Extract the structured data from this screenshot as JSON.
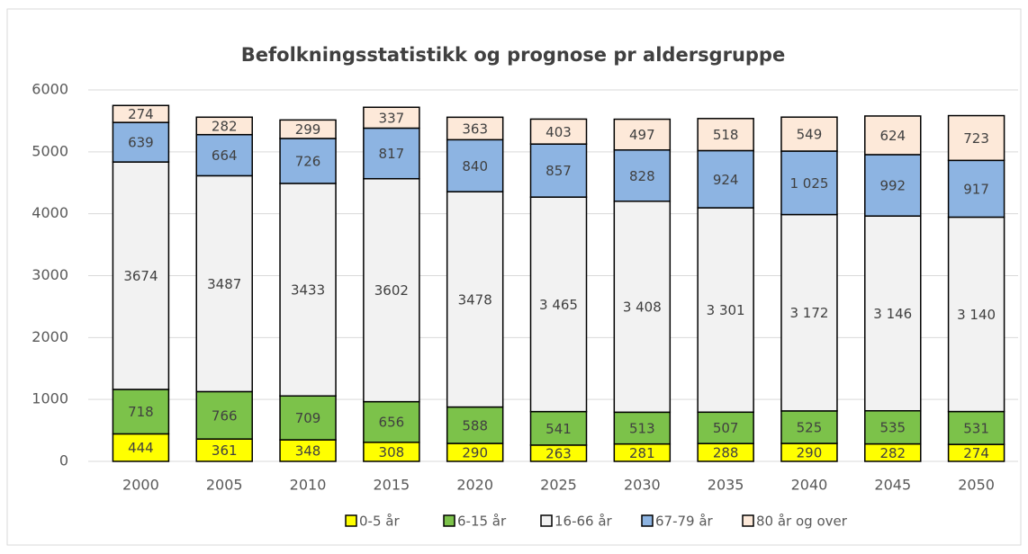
{
  "chart_data": {
    "type": "stacked_bar",
    "title": "Befolkningsstatistikk og prognose pr aldersgruppe",
    "categories": [
      "2000",
      "2005",
      "2010",
      "2015",
      "2020",
      "2025",
      "2030",
      "2035",
      "2040",
      "2045",
      "2050"
    ],
    "series": [
      {
        "name": "0-5 år",
        "color": "#ffff00",
        "values": [
          444,
          361,
          348,
          308,
          290,
          263,
          281,
          288,
          290,
          282,
          274
        ]
      },
      {
        "name": "6-15 år",
        "color": "#7cc24a",
        "values": [
          718,
          766,
          709,
          656,
          588,
          541,
          513,
          507,
          525,
          535,
          531
        ]
      },
      {
        "name": "16-66 år",
        "color": "#f2f2f2",
        "values": [
          3674,
          3487,
          3433,
          3602,
          3478,
          3465,
          3408,
          3301,
          3172,
          3146,
          3140
        ],
        "value_labels": [
          "3674",
          "3487",
          "3433",
          "3602",
          "3478",
          "3 465",
          "3 408",
          "3 301",
          "3 172",
          "3 146",
          "3 140"
        ]
      },
      {
        "name": "67-79 år",
        "color": "#8db4e2",
        "values": [
          639,
          664,
          726,
          817,
          840,
          857,
          828,
          924,
          1025,
          992,
          917
        ],
        "value_labels": [
          "639",
          "664",
          "726",
          "817",
          "840",
          "857",
          "828",
          "924",
          "1 025",
          "992",
          "917"
        ]
      },
      {
        "name": "80 år og over",
        "color": "#fde9d9",
        "values": [
          274,
          282,
          299,
          337,
          363,
          403,
          497,
          518,
          549,
          624,
          723
        ]
      }
    ],
    "ylim": [
      0,
      6000
    ],
    "yticks": [
      0,
      1000,
      2000,
      3000,
      4000,
      5000,
      6000
    ],
    "grid": true,
    "legend": "bottom"
  }
}
